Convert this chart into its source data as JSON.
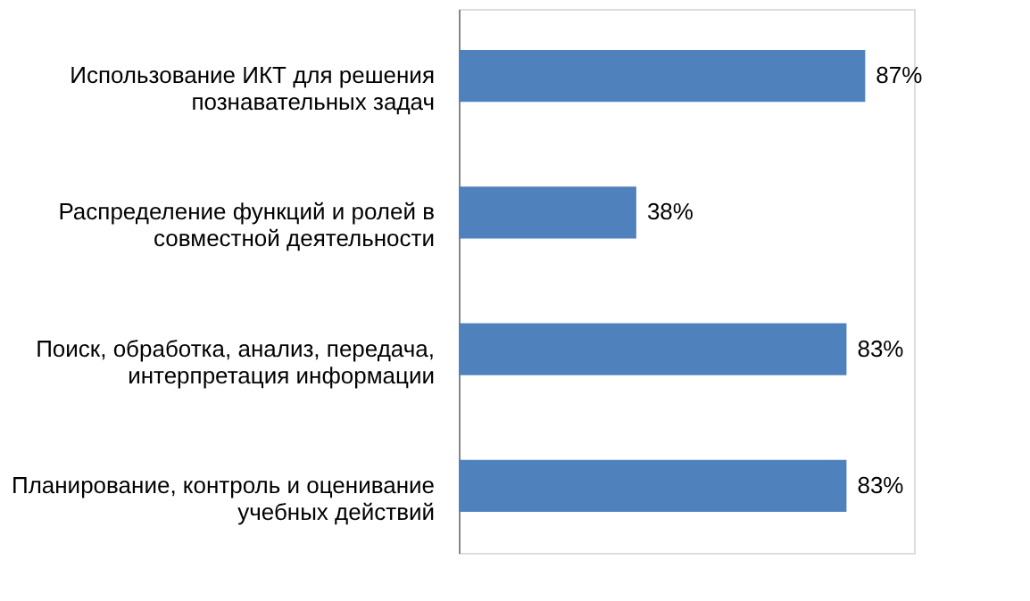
{
  "chart_data": {
    "type": "bar",
    "orientation": "horizontal",
    "categories": [
      "Использование ИКТ для решения познавательных задач",
      "Распределение функций и ролей в совместной деятельности",
      "Поиск, обработка, анализ, передача, интерпретация информации",
      "Планирование, контроль и оценивание учебных действий"
    ],
    "values": [
      87,
      38,
      83,
      83
    ],
    "value_labels": [
      "87%",
      "38%",
      "83%",
      "83%"
    ],
    "color": "#4f81bd"
  }
}
